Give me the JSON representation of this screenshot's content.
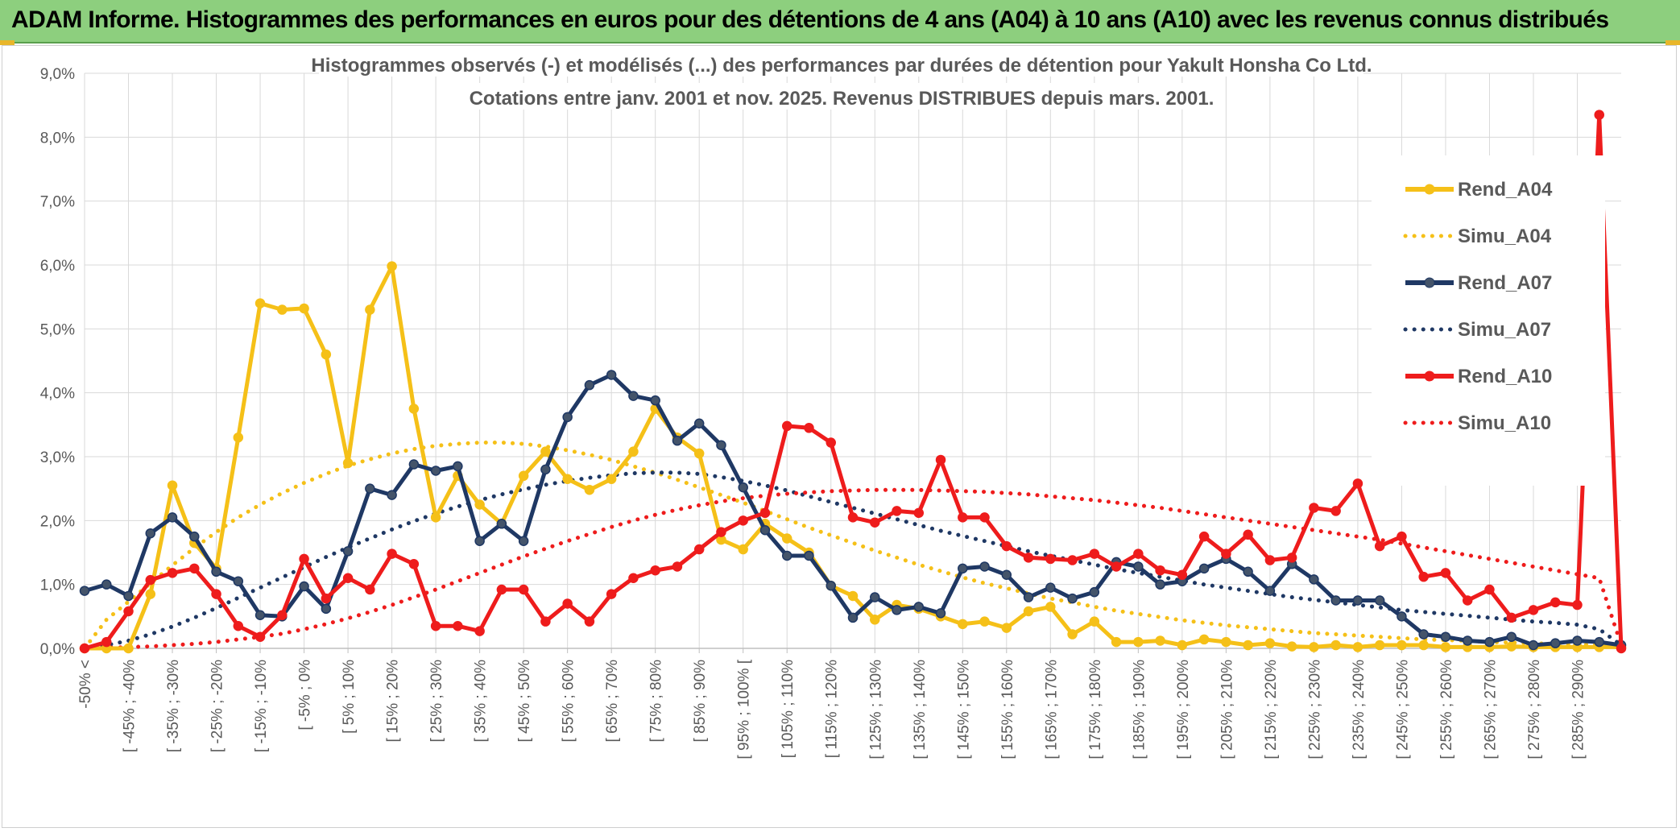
{
  "header": {
    "title": "ADAM Informe. Histogrammes des performances en euros pour des détentions de 4 ans (A04) à 10 ans (A10) avec les revenus connus distribués"
  },
  "chart_data": {
    "type": "line",
    "title": "Histogrammes observés (-) et modélisés (...) des performances par durées de détention pour Yakult Honsha Co Ltd.",
    "subtitle": "Cotations entre janv. 2001 et nov. 2025. Revenus DISTRIBUES depuis mars. 2001.",
    "xlabel": "",
    "ylabel": "",
    "ylim": [
      0,
      9
    ],
    "y_ticks": [
      "0,0%",
      "1,0%",
      "2,0%",
      "3,0%",
      "4,0%",
      "5,0%",
      "6,0%",
      "7,0%",
      "8,0%",
      "9,0%"
    ],
    "grid": true,
    "legend_position": "right",
    "x_tick_labels": [
      "-50% <",
      "[ -45% ; -40%",
      "[ -35% ; -30%",
      "[ -25% ; -20%",
      "[ -15% ; -10%",
      "[ -5% ; 0%",
      "[ 5% ; 10%",
      "[ 15% ; 20%",
      "[ 25% ; 30%",
      "[ 35% ; 40%",
      "[ 45% ; 50%",
      "[ 55% ; 60%",
      "[ 65% ; 70%",
      "[ 75% ; 80%",
      "[ 85% ; 90%",
      "[ 95% ; 100% [",
      "[ 105% ; 110%",
      "[ 115% ; 120%",
      "[ 125% ; 130%",
      "[ 135% ; 140%",
      "[ 145% ; 150%",
      "[ 155% ; 160%",
      "[ 165% ; 170%",
      "[ 175% ; 180%",
      "[ 185% ; 190%",
      "[ 195% ; 200%",
      "[ 205% ; 210%",
      "[ 215% ; 220%",
      "[ 225% ; 230%",
      "[ 235% ; 240%",
      "[ 245% ; 250%",
      "[ 255% ; 260%",
      "[ 265% ; 270%",
      "[ 275% ; 280%",
      "[ 285% ; 290%"
    ],
    "num_bins": 71,
    "series": [
      {
        "name": "Rend_A04",
        "style": "solid",
        "color": "#f5c018",
        "markers": true,
        "values": [
          0.0,
          0.0,
          0.0,
          0.85,
          2.55,
          1.65,
          1.25,
          3.3,
          5.4,
          5.3,
          5.32,
          4.6,
          2.9,
          5.3,
          5.98,
          3.75,
          2.05,
          2.7,
          2.25,
          1.95,
          2.7,
          3.08,
          2.65,
          2.48,
          2.65,
          3.08,
          3.75,
          3.3,
          3.05,
          1.7,
          1.55,
          1.95,
          1.72,
          1.5,
          0.98,
          0.82,
          0.45,
          0.68,
          0.62,
          0.5,
          0.38,
          0.42,
          0.32,
          0.58,
          0.65,
          0.22,
          0.42,
          0.1,
          0.1,
          0.12,
          0.05,
          0.14,
          0.1,
          0.05,
          0.08,
          0.03,
          0.02,
          0.05,
          0.02,
          0.05,
          0.05,
          0.05,
          0.02,
          0.02,
          0.02,
          0.03,
          0.02,
          0.02,
          0.02,
          0.02,
          0.02
        ]
      },
      {
        "name": "Simu_A04",
        "style": "dotted",
        "color": "#f5c018",
        "markers": false,
        "values": [
          0.0,
          0.45,
          0.73,
          1.02,
          1.3,
          1.57,
          1.82,
          2.05,
          2.25,
          2.43,
          2.59,
          2.73,
          2.86,
          2.96,
          3.05,
          3.12,
          3.17,
          3.2,
          3.22,
          3.22,
          3.2,
          3.16,
          3.1,
          3.03,
          2.95,
          2.85,
          2.75,
          2.64,
          2.52,
          2.4,
          2.28,
          2.15,
          2.02,
          1.89,
          1.77,
          1.65,
          1.53,
          1.42,
          1.31,
          1.21,
          1.11,
          1.02,
          0.94,
          0.86,
          0.78,
          0.72,
          0.65,
          0.59,
          0.54,
          0.49,
          0.44,
          0.4,
          0.36,
          0.33,
          0.3,
          0.27,
          0.24,
          0.22,
          0.2,
          0.18,
          0.16,
          0.14,
          0.13,
          0.12,
          0.1,
          0.09,
          0.08,
          0.07,
          0.06,
          0.06,
          0.05
        ]
      },
      {
        "name": "Rend_A07",
        "style": "solid",
        "color": "#1f3864",
        "markers": true,
        "values": [
          0.9,
          1.0,
          0.82,
          1.8,
          2.05,
          1.75,
          1.2,
          1.05,
          0.52,
          0.5,
          0.97,
          0.62,
          1.52,
          2.5,
          2.4,
          2.88,
          2.78,
          2.85,
          1.68,
          1.95,
          1.68,
          2.8,
          3.62,
          4.12,
          4.28,
          3.95,
          3.88,
          3.25,
          3.52,
          3.18,
          2.52,
          1.85,
          1.45,
          1.45,
          0.98,
          0.48,
          0.8,
          0.6,
          0.65,
          0.55,
          1.25,
          1.28,
          1.15,
          0.8,
          0.95,
          0.78,
          0.88,
          1.35,
          1.28,
          1.0,
          1.05,
          1.25,
          1.4,
          1.2,
          0.9,
          1.32,
          1.08,
          0.75,
          0.75,
          0.75,
          0.5,
          0.22,
          0.18,
          0.12,
          0.1,
          0.18,
          0.05,
          0.08,
          0.12,
          0.1,
          0.05
        ]
      },
      {
        "name": "Simu_A07",
        "style": "dotted",
        "color": "#1f3864",
        "markers": false,
        "values": [
          0.0,
          0.05,
          0.12,
          0.22,
          0.34,
          0.48,
          0.63,
          0.79,
          0.95,
          1.11,
          1.27,
          1.43,
          1.58,
          1.72,
          1.86,
          1.99,
          2.11,
          2.22,
          2.32,
          2.41,
          2.49,
          2.56,
          2.62,
          2.67,
          2.71,
          2.74,
          2.75,
          2.75,
          2.73,
          2.68,
          2.62,
          2.55,
          2.47,
          2.38,
          2.29,
          2.2,
          2.11,
          2.02,
          1.93,
          1.84,
          1.76,
          1.68,
          1.6,
          1.52,
          1.45,
          1.38,
          1.31,
          1.24,
          1.18,
          1.12,
          1.06,
          1.0,
          0.95,
          0.9,
          0.85,
          0.8,
          0.76,
          0.72,
          0.68,
          0.64,
          0.6,
          0.57,
          0.54,
          0.51,
          0.48,
          0.45,
          0.42,
          0.4,
          0.37,
          0.3,
          0.05
        ]
      },
      {
        "name": "Rend_A10",
        "style": "solid",
        "color": "#ee1c1c",
        "markers": true,
        "values": [
          0.0,
          0.1,
          0.58,
          1.07,
          1.18,
          1.25,
          0.85,
          0.35,
          0.18,
          0.52,
          1.4,
          0.78,
          1.1,
          0.92,
          1.48,
          1.32,
          0.35,
          0.35,
          0.27,
          0.92,
          0.92,
          0.42,
          0.7,
          0.42,
          0.85,
          1.1,
          1.22,
          1.28,
          1.55,
          1.82,
          2.0,
          2.12,
          3.48,
          3.45,
          3.22,
          2.05,
          1.97,
          2.15,
          2.12,
          2.95,
          2.05,
          2.05,
          1.6,
          1.42,
          1.4,
          1.38,
          1.48,
          1.28,
          1.48,
          1.22,
          1.15,
          1.75,
          1.48,
          1.78,
          1.38,
          1.42,
          2.2,
          2.15,
          2.58,
          1.6,
          1.75,
          1.12,
          1.18,
          0.75,
          0.92,
          0.48,
          0.6,
          0.72,
          0.68,
          8.35,
          0.0
        ]
      },
      {
        "name": "Simu_A10",
        "style": "dotted",
        "color": "#ee1c1c",
        "markers": false,
        "values": [
          0.0,
          0.01,
          0.02,
          0.03,
          0.05,
          0.07,
          0.1,
          0.14,
          0.18,
          0.23,
          0.3,
          0.38,
          0.47,
          0.57,
          0.68,
          0.8,
          0.92,
          1.05,
          1.18,
          1.31,
          1.44,
          1.56,
          1.68,
          1.79,
          1.9,
          2.0,
          2.09,
          2.17,
          2.24,
          2.3,
          2.35,
          2.39,
          2.42,
          2.44,
          2.46,
          2.47,
          2.48,
          2.48,
          2.48,
          2.47,
          2.46,
          2.45,
          2.43,
          2.41,
          2.38,
          2.35,
          2.32,
          2.28,
          2.24,
          2.2,
          2.15,
          2.1,
          2.05,
          2.0,
          1.95,
          1.9,
          1.85,
          1.8,
          1.75,
          1.7,
          1.64,
          1.58,
          1.52,
          1.46,
          1.4,
          1.34,
          1.28,
          1.22,
          1.16,
          1.1,
          0.05
        ]
      }
    ]
  }
}
